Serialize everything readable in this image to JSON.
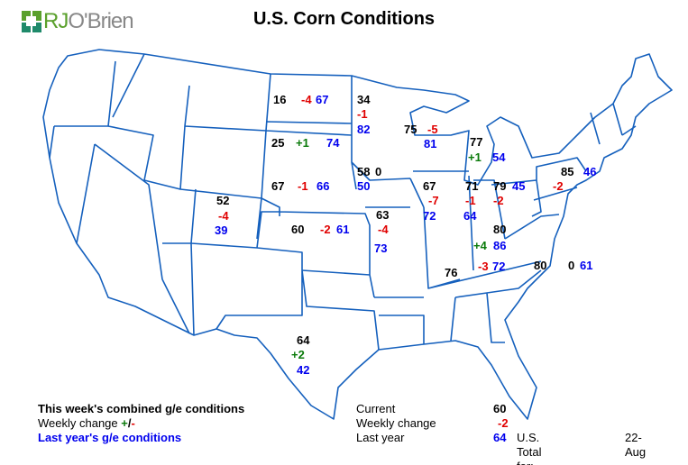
{
  "title": "U.S. Corn Conditions",
  "logo": {
    "text_r": "RJ",
    "text_o": "O'",
    "text_rest": "Brien"
  },
  "colors": {
    "current": "#000000",
    "negative_change": "#e00000",
    "positive_change": "#0a7a0a",
    "last_year": "#0000ee",
    "state_lines": "#1560bd",
    "logo_green": "#5aa02c"
  },
  "states": [
    {
      "id": "north-dakota",
      "current": "16",
      "change": "-4",
      "last_year": "67"
    },
    {
      "id": "minnesota",
      "current": "34",
      "change": "-1",
      "last_year": "82"
    },
    {
      "id": "south-dakota",
      "current": "25",
      "change": "+1",
      "last_year": "74"
    },
    {
      "id": "wisconsin",
      "current": "75",
      "change": "-5",
      "last_year": "81"
    },
    {
      "id": "michigan",
      "current": "77",
      "change": "+1",
      "last_year": "54"
    },
    {
      "id": "iowa",
      "current": "58",
      "change": "0",
      "last_year": "50"
    },
    {
      "id": "nebraska",
      "current": "67",
      "change": "-1",
      "last_year": "66"
    },
    {
      "id": "pennsylvania",
      "current": "85",
      "change": "-2",
      "last_year": "46"
    },
    {
      "id": "colorado",
      "current": "52",
      "change": "-4",
      "last_year": "39"
    },
    {
      "id": "illinois",
      "current": "67",
      "change": "-7",
      "last_year": "72"
    },
    {
      "id": "indiana",
      "current": "71",
      "change": "-1",
      "last_year": "64"
    },
    {
      "id": "ohio",
      "current": "79",
      "change": "-2",
      "last_year": "45"
    },
    {
      "id": "kansas",
      "current": "60",
      "change": "-2",
      "last_year": "61"
    },
    {
      "id": "missouri",
      "current": "63",
      "change": "-4",
      "last_year": "73"
    },
    {
      "id": "kentucky",
      "current": "80",
      "change": "+4",
      "last_year": "86"
    },
    {
      "id": "tennessee",
      "current": "76",
      "change": "-3",
      "last_year": "72"
    },
    {
      "id": "north-carolina",
      "current": "80",
      "change": "0",
      "last_year": "61"
    },
    {
      "id": "texas",
      "current": "64",
      "change": "+2",
      "last_year": "42"
    }
  ],
  "legend": {
    "line1": "This week's combined g/e conditions",
    "line2_text": "Weekly change ",
    "line2_plus": "+",
    "line2_slash": "/",
    "line2_minus": "-",
    "line3": "Last year's g/e conditions"
  },
  "totals": {
    "current_label": "Current",
    "current_value": "60",
    "change_label": "Weekly change",
    "change_value": "-2",
    "last_year_label": "Last year",
    "last_year_value": "64",
    "total_label": "U.S. Total for:",
    "date": "22-Aug"
  }
}
